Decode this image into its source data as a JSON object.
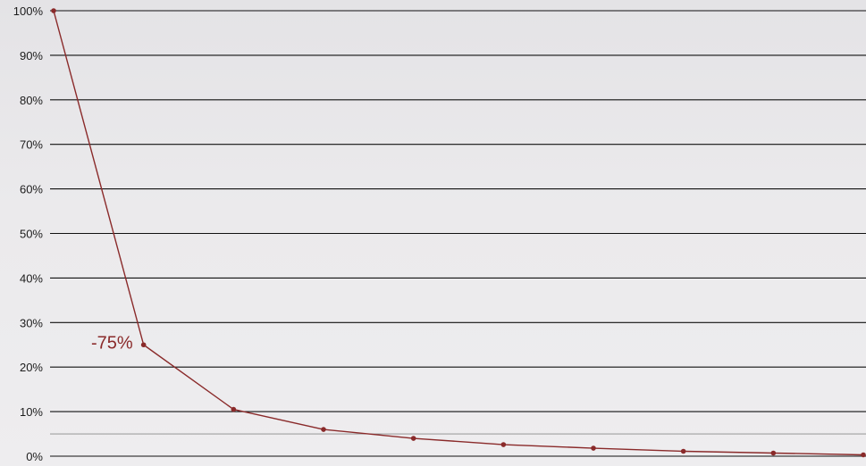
{
  "chart_data": {
    "type": "line",
    "title": "",
    "xlabel": "",
    "ylabel": "",
    "y_ticks": [
      "100%",
      "90%",
      "80%",
      "70%",
      "60%",
      "50%",
      "40%",
      "30%",
      "20%",
      "10%",
      "0%"
    ],
    "ylim": [
      0,
      100
    ],
    "xlim": [
      0,
      9
    ],
    "grid": true,
    "legend": "none",
    "series": [
      {
        "x": [
          0,
          1,
          2,
          3,
          4,
          5,
          6,
          7,
          8,
          9
        ],
        "values": [
          100,
          25,
          10.5,
          6,
          4,
          2.6,
          1.8,
          1.1,
          0.7,
          0.3
        ],
        "color": "#8a2a2a"
      }
    ],
    "annotations": [
      {
        "text": "-75%",
        "x": 1,
        "y": 25
      }
    ],
    "colors": {
      "line": "#8a2a2a",
      "grid": "#111111",
      "text": "#1c1c1c"
    }
  }
}
